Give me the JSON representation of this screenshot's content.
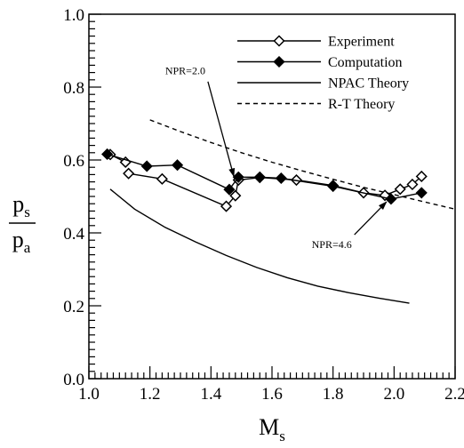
{
  "chart_data": {
    "type": "line",
    "xlabel": "M",
    "xlabel_sub": "s",
    "ylabel_num": "p",
    "ylabel_num_sub": "s",
    "ylabel_den": "p",
    "ylabel_den_sub": "a",
    "xlim": [
      1.0,
      2.2
    ],
    "ylim": [
      0.0,
      1.0
    ],
    "x_ticks": [
      "1.0",
      "1.2",
      "1.4",
      "1.6",
      "1.8",
      "2.0",
      "2.2"
    ],
    "y_ticks": [
      "0.0",
      "0.2",
      "0.4",
      "0.6",
      "0.8",
      "1.0"
    ],
    "grid": false,
    "legend_position": "top-right",
    "series": [
      {
        "name": "Experiment",
        "style": "line-open-diamond",
        "color": "#000000",
        "segments": [
          [
            [
              1.13,
              0.563
            ],
            [
              1.24,
              0.548
            ],
            [
              1.45,
              0.473
            ],
            [
              1.48,
              0.502
            ],
            [
              1.49,
              0.545
            ],
            [
              1.56,
              0.552
            ],
            [
              1.68,
              0.545
            ],
            [
              1.8,
              0.53
            ],
            [
              1.9,
              0.51
            ],
            [
              1.97,
              0.503
            ],
            [
              2.02,
              0.52
            ],
            [
              2.06,
              0.533
            ],
            [
              2.09,
              0.555
            ]
          ],
          [
            [
              1.07,
              0.615
            ],
            [
              1.12,
              0.594
            ]
          ]
        ]
      },
      {
        "name": "Computation",
        "style": "line-filled-diamond",
        "color": "#000000",
        "segments": [
          [
            [
              1.06,
              0.616
            ],
            [
              1.19,
              0.583
            ],
            [
              1.29,
              0.586
            ],
            [
              1.46,
              0.519
            ],
            [
              1.49,
              0.553
            ],
            [
              1.56,
              0.553
            ],
            [
              1.63,
              0.55
            ],
            [
              1.8,
              0.528
            ],
            [
              1.99,
              0.493
            ],
            [
              2.09,
              0.51
            ]
          ]
        ]
      },
      {
        "name": "NPAC Theory",
        "style": "solid",
        "color": "#000000",
        "segments": [
          [
            [
              1.07,
              0.52
            ],
            [
              1.15,
              0.465
            ],
            [
              1.25,
              0.415
            ],
            [
              1.35,
              0.375
            ],
            [
              1.45,
              0.338
            ],
            [
              1.55,
              0.305
            ],
            [
              1.65,
              0.277
            ],
            [
              1.75,
              0.254
            ],
            [
              1.85,
              0.236
            ],
            [
              1.95,
              0.221
            ],
            [
              2.05,
              0.207
            ]
          ]
        ]
      },
      {
        "name": "R-T Theory",
        "style": "dashed",
        "color": "#000000",
        "segments": [
          [
            [
              1.2,
              0.71
            ],
            [
              1.3,
              0.678
            ],
            [
              1.4,
              0.648
            ],
            [
              1.5,
              0.62
            ],
            [
              1.6,
              0.594
            ],
            [
              1.7,
              0.57
            ],
            [
              1.8,
              0.547
            ],
            [
              1.9,
              0.525
            ],
            [
              2.0,
              0.505
            ],
            [
              2.1,
              0.485
            ],
            [
              2.2,
              0.465
            ]
          ]
        ]
      }
    ],
    "annotations": [
      {
        "text": "NPR=2.0",
        "label_xy": [
          1.25,
          0.835
        ],
        "arrow_from": [
          1.39,
          0.815
        ],
        "arrow_to": [
          1.475,
          0.555
        ]
      },
      {
        "text": "NPR=4.6",
        "label_xy": [
          1.73,
          0.358
        ],
        "arrow_from": [
          1.87,
          0.395
        ],
        "arrow_to": [
          1.975,
          0.485
        ]
      }
    ]
  }
}
